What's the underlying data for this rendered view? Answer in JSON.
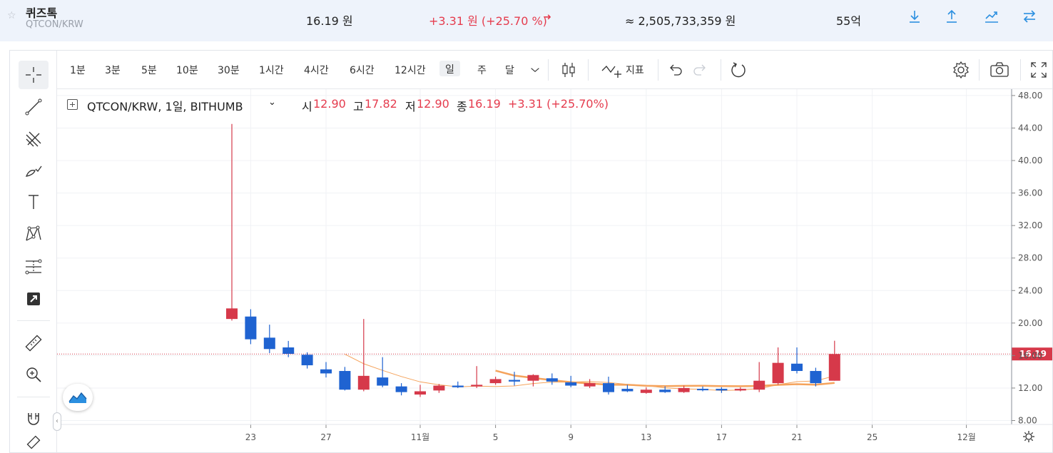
{
  "ticker": {
    "coin_name": "퀴즈톡",
    "pair": "QTCON/KRW",
    "price": "16.19 원",
    "change": "+3.31 원 (+25.70 %)",
    "volume": "≈ 2,505,733,359 원",
    "market_cap": "55억",
    "icons": [
      "deposit-icon",
      "withdraw-icon",
      "chart-icon",
      "exchange-icon"
    ]
  },
  "toolbar": {
    "intervals": [
      "1분",
      "3분",
      "5분",
      "10분",
      "30분",
      "1시간",
      "4시간",
      "6시간",
      "12시간",
      "일",
      "주",
      "달"
    ],
    "selected_interval": "일",
    "indicator_label": "지표"
  },
  "legend": {
    "symbol": "QTCON/KRW, 1일, BITHUMB",
    "open_label": "시",
    "open": "12.90",
    "high_label": "고",
    "high": "17.82",
    "low_label": "저",
    "low": "12.90",
    "close_label": "종",
    "close": "16.19",
    "change": "+3.31 (+25.70%)"
  },
  "colors": {
    "up": "#d6394a",
    "down": "#1f63d1",
    "ma": "#f5a35c",
    "accent": "#2b8fe0"
  },
  "chart_data": {
    "type": "candlestick",
    "title": "QTCON/KRW, 1일, BITHUMB",
    "x_ticks": [
      "23",
      "27",
      "11월",
      "5",
      "9",
      "13",
      "17",
      "21",
      "25",
      "12월"
    ],
    "y_ticks": [
      "8.00",
      "12.00",
      "16.00",
      "20.00",
      "24.00",
      "28.00",
      "32.00",
      "36.00",
      "40.00",
      "44.00",
      "48.00"
    ],
    "ylim": [
      7.5,
      48.5
    ],
    "last_price": "16.19",
    "grid": true,
    "candles": [
      {
        "date": "10-22",
        "o": 20.5,
        "h": 44.5,
        "l": 20.3,
        "c": 21.8
      },
      {
        "date": "10-23",
        "o": 20.8,
        "h": 21.7,
        "l": 17.4,
        "c": 18.0
      },
      {
        "date": "10-24",
        "o": 18.2,
        "h": 19.8,
        "l": 16.3,
        "c": 16.8
      },
      {
        "date": "10-25",
        "o": 17.0,
        "h": 17.8,
        "l": 15.8,
        "c": 16.2
      },
      {
        "date": "10-26",
        "o": 16.1,
        "h": 16.4,
        "l": 14.4,
        "c": 14.8
      },
      {
        "date": "10-27",
        "o": 14.3,
        "h": 15.2,
        "l": 13.3,
        "c": 13.8
      },
      {
        "date": "10-28",
        "o": 14.1,
        "h": 14.6,
        "l": 11.7,
        "c": 11.8
      },
      {
        "date": "10-29",
        "o": 11.8,
        "h": 20.5,
        "l": 11.6,
        "c": 13.5
      },
      {
        "date": "10-30",
        "o": 13.3,
        "h": 15.8,
        "l": 12.1,
        "c": 12.3
      },
      {
        "date": "10-31",
        "o": 12.2,
        "h": 12.6,
        "l": 11.1,
        "c": 11.5
      },
      {
        "date": "11-01",
        "o": 11.2,
        "h": 12.4,
        "l": 10.9,
        "c": 11.6
      },
      {
        "date": "11-02",
        "o": 11.7,
        "h": 12.5,
        "l": 11.4,
        "c": 12.3
      },
      {
        "date": "11-03",
        "o": 12.3,
        "h": 12.8,
        "l": 12.0,
        "c": 12.1
      },
      {
        "date": "11-04",
        "o": 12.2,
        "h": 14.7,
        "l": 12.0,
        "c": 12.4
      },
      {
        "date": "11-05",
        "o": 12.6,
        "h": 13.4,
        "l": 12.4,
        "c": 13.1
      },
      {
        "date": "11-06",
        "o": 13.0,
        "h": 14.0,
        "l": 12.3,
        "c": 12.8
      },
      {
        "date": "11-07",
        "o": 12.9,
        "h": 13.7,
        "l": 12.2,
        "c": 13.6
      },
      {
        "date": "11-08",
        "o": 13.2,
        "h": 13.8,
        "l": 12.4,
        "c": 12.8
      },
      {
        "date": "11-09",
        "o": 12.7,
        "h": 13.5,
        "l": 12.1,
        "c": 12.3
      },
      {
        "date": "11-10",
        "o": 12.2,
        "h": 13.1,
        "l": 12.0,
        "c": 12.6
      },
      {
        "date": "11-11",
        "o": 12.6,
        "h": 13.4,
        "l": 11.2,
        "c": 11.5
      },
      {
        "date": "11-12",
        "o": 11.9,
        "h": 12.4,
        "l": 11.5,
        "c": 11.6
      },
      {
        "date": "11-13",
        "o": 11.4,
        "h": 12.1,
        "l": 11.3,
        "c": 11.8
      },
      {
        "date": "11-14",
        "o": 11.8,
        "h": 12.2,
        "l": 11.4,
        "c": 11.5
      },
      {
        "date": "11-15",
        "o": 11.5,
        "h": 12.3,
        "l": 11.4,
        "c": 12.0
      },
      {
        "date": "11-16",
        "o": 11.9,
        "h": 12.2,
        "l": 11.6,
        "c": 11.8
      },
      {
        "date": "11-17",
        "o": 11.9,
        "h": 12.1,
        "l": 11.4,
        "c": 11.7
      },
      {
        "date": "11-18",
        "o": 11.7,
        "h": 12.1,
        "l": 11.6,
        "c": 11.9
      },
      {
        "date": "11-19",
        "o": 11.8,
        "h": 15.2,
        "l": 11.5,
        "c": 12.9
      },
      {
        "date": "11-20",
        "o": 12.6,
        "h": 17.0,
        "l": 12.4,
        "c": 15.1
      },
      {
        "date": "11-21",
        "o": 15.0,
        "h": 17.0,
        "l": 13.8,
        "c": 14.1
      },
      {
        "date": "11-22",
        "o": 14.1,
        "h": 14.5,
        "l": 12.2,
        "c": 12.6
      },
      {
        "date": "11-23",
        "o": 12.9,
        "h": 17.82,
        "l": 12.9,
        "c": 16.19
      }
    ]
  }
}
